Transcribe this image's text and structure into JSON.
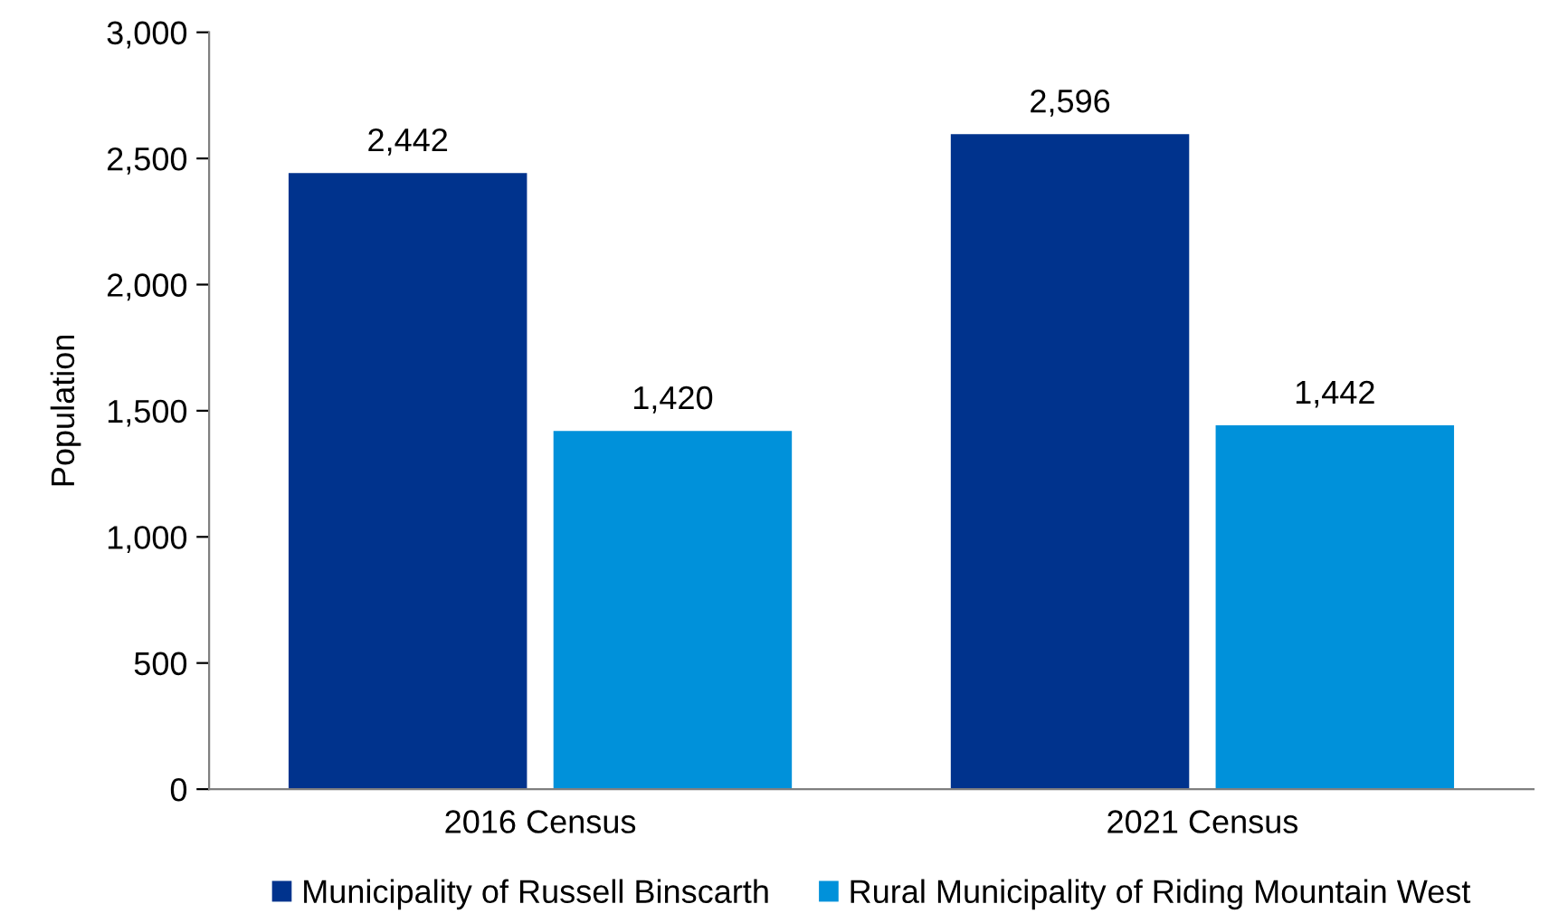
{
  "chart_data": {
    "type": "bar",
    "ylabel": "Population",
    "categories": [
      "2016 Census",
      "2021 Census"
    ],
    "series": [
      {
        "name": "Municipality of Russell Binscarth",
        "color": "#00338d",
        "values": [
          2442,
          2596
        ],
        "value_labels": [
          "2,442",
          "2,596"
        ]
      },
      {
        "name": "Rural Municipality of Riding Mountain West",
        "color": "#0091da",
        "values": [
          1420,
          1442
        ],
        "value_labels": [
          "1,420",
          "1,442"
        ]
      }
    ],
    "ylim": [
      0,
      3000
    ],
    "yticks": [
      {
        "value": 0,
        "label": "0"
      },
      {
        "value": 500,
        "label": "500"
      },
      {
        "value": 1000,
        "label": "1,000"
      },
      {
        "value": 1500,
        "label": "1,500"
      },
      {
        "value": 2000,
        "label": "2,000"
      },
      {
        "value": 2500,
        "label": "2,500"
      },
      {
        "value": 3000,
        "label": "3,000"
      }
    ],
    "grid": false,
    "legend": "bottom"
  }
}
